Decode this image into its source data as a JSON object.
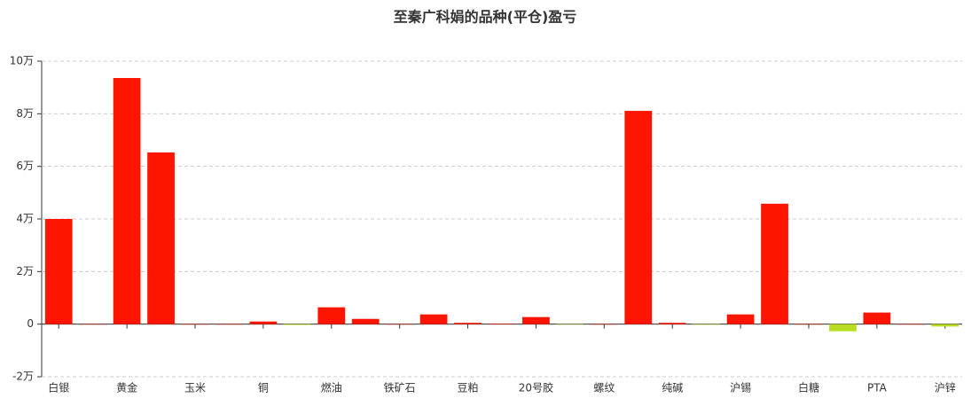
{
  "chart_data": {
    "type": "bar",
    "title": "至秦广科娟的品种(平仓)盈亏",
    "categories": [
      "白银",
      null,
      "黄金",
      null,
      "玉米",
      null,
      "铜",
      null,
      "燃油",
      null,
      "铁矿石",
      null,
      "豆粕",
      null,
      "20号胶",
      null,
      "螺纹",
      null,
      "纯碱",
      null,
      "沪锡",
      null,
      "白糖",
      null,
      "PTA",
      null,
      "沪锌"
    ],
    "values": [
      40000,
      0,
      93600,
      65300,
      0,
      0,
      1000,
      -300,
      6400,
      2000,
      0,
      3700,
      500,
      200,
      2700,
      -100,
      0,
      81100,
      500,
      -200,
      3700,
      45800,
      0,
      -2700,
      4400,
      0,
      -900
    ],
    "color": "#fd1500",
    "negative_color": "#b8dc1f",
    "ylim": [
      -20000,
      100000
    ],
    "yticks": [
      {
        "value": -20000,
        "label": "-2万"
      },
      0,
      {
        "value": 20000,
        "label": "2万"
      },
      {
        "value": 40000,
        "label": "4万"
      },
      {
        "value": 60000,
        "label": "6万"
      },
      {
        "value": 80000,
        "label": "8万"
      },
      {
        "value": 100000,
        "label": "10万"
      }
    ],
    "grid": true
  }
}
